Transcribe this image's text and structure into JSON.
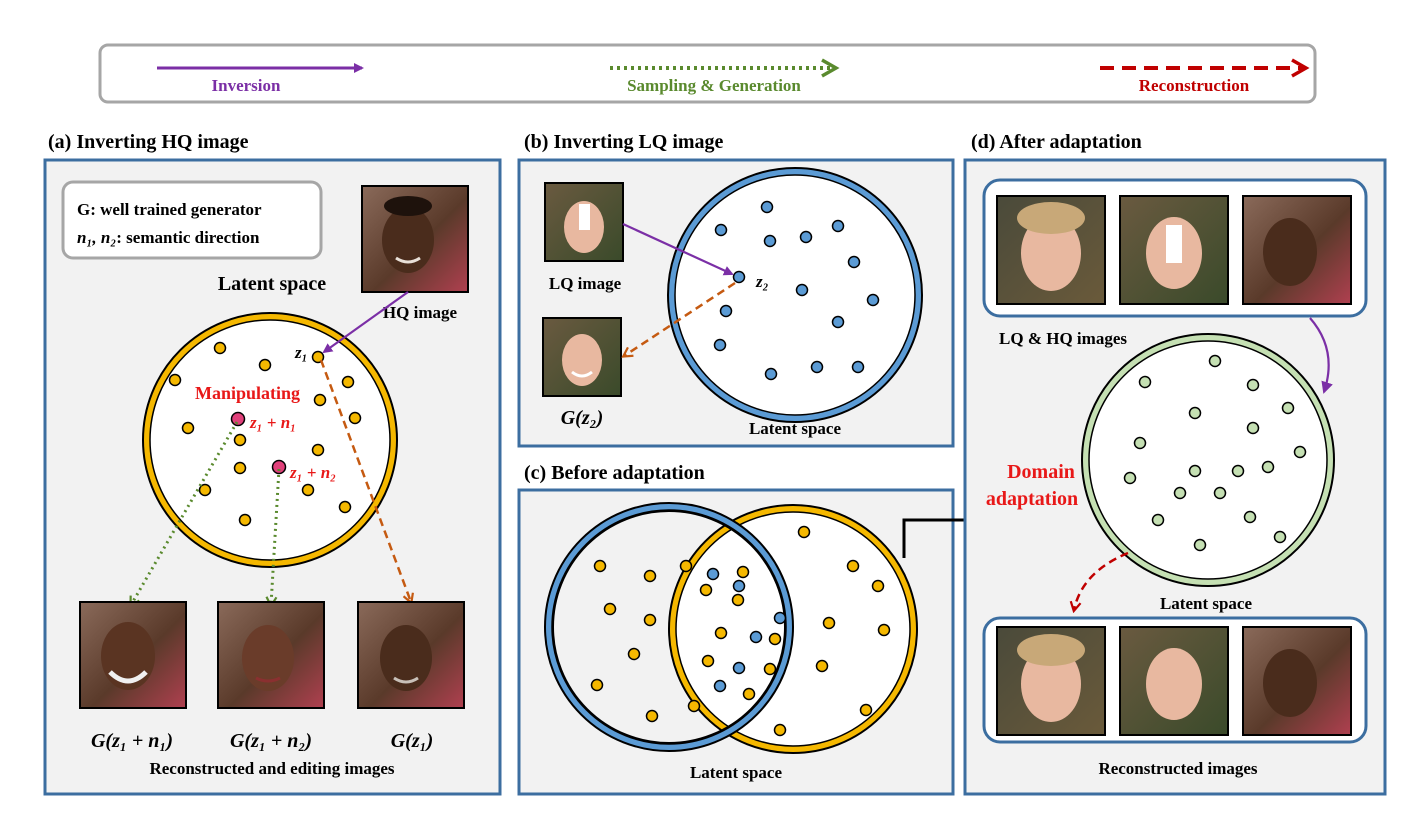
{
  "legend": {
    "inversion": "Inversion",
    "sampling": "Sampling & Generation",
    "reconstruction": "Reconstruction",
    "colors": {
      "inversion": "#7b2fa6",
      "sampling": "#5a8a2e",
      "reconstruction": "#c00000"
    }
  },
  "panel_a": {
    "title": "(a) Inverting HQ image",
    "note_line1": "G: well trained generator",
    "note_line2_vars": "n₁, n₂",
    "note_line2_text": ": semantic direction",
    "latent_label": "Latent space",
    "hq_label": "HQ image",
    "z1": "z₁",
    "manipulating": "Manipulating",
    "z1n1": "z₁ + n₁",
    "z1n2": "z₁ + n₂",
    "out1": "G(z₁ + n₁)",
    "out2": "G(z₁ + n₂)",
    "out3": "G(z₁)",
    "caption": "Reconstructed and editing images"
  },
  "panel_b": {
    "title": "(b) Inverting LQ image",
    "lq_label": "LQ image",
    "gz2": "G(z₂)",
    "z2": "z₂",
    "latent_label": "Latent space"
  },
  "panel_c": {
    "title": "(c) Before adaptation",
    "latent_label": "Latent space"
  },
  "panel_d": {
    "title": "(d) After adaptation",
    "inputs_label": "LQ & HQ images",
    "adapt_line1": "Domain",
    "adapt_line2": "adaptation",
    "latent_label": "Latent space",
    "caption": "Reconstructed images"
  },
  "colors": {
    "panel_border": "#3c6ea0",
    "panel_bg": "#f2f2f2",
    "yellow_dot": "#f5b800",
    "blue_dot": "#5b9bd5",
    "green_dot": "#c5e0b3",
    "green_ring": "#a9d08e",
    "pink_dot": "#e0407a",
    "orange_arrow": "#c55a11"
  }
}
